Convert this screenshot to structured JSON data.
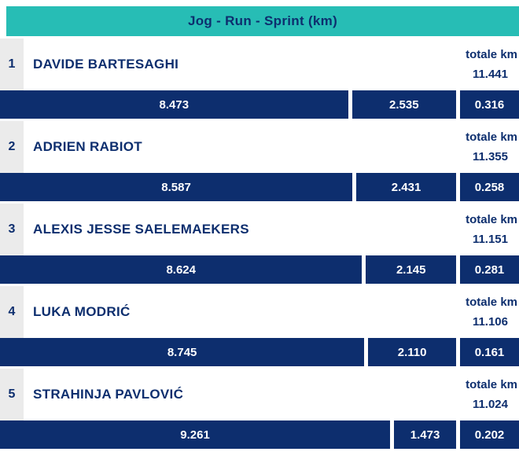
{
  "header": {
    "title": "Jog - Run - Sprint (km)"
  },
  "labels": {
    "totale": "totale km"
  },
  "colors": {
    "teal": "#27bdb5",
    "navy": "#0d2e6e",
    "rank-bg": "#ebebeb",
    "bar-text": "#ffffff"
  },
  "players": [
    {
      "rank": "1",
      "name": "DAVIDE BARTESAGHI",
      "total": "11.441",
      "jog": "8.473",
      "run": "2.535",
      "sprint": "0.316"
    },
    {
      "rank": "2",
      "name": "ADRIEN RABIOT",
      "total": "11.355",
      "jog": "8.587",
      "run": "2.431",
      "sprint": "0.258"
    },
    {
      "rank": "3",
      "name": "ALEXIS JESSE SAELEMAEKERS",
      "total": "11.151",
      "jog": "8.624",
      "run": "2.145",
      "sprint": "0.281"
    },
    {
      "rank": "4",
      "name": "LUKA MODRIĆ",
      "total": "11.106",
      "jog": "8.745",
      "run": "2.110",
      "sprint": "0.161"
    },
    {
      "rank": "5",
      "name": "STRAHINJA PAVLOVIĆ",
      "total": "11.024",
      "jog": "9.261",
      "run": "1.473",
      "sprint": "0.202"
    }
  ],
  "chart_data": {
    "type": "bar",
    "orientation": "horizontal",
    "stacked": true,
    "title": "Jog - Run - Sprint (km)",
    "categories": [
      "DAVIDE BARTESAGHI",
      "ADRIEN RABIOT",
      "ALEXIS JESSE SAELEMAEKERS",
      "LUKA MODRIĆ",
      "STRAHINJA PAVLOVIĆ"
    ],
    "series": [
      {
        "name": "Jog",
        "values": [
          8.473,
          8.587,
          8.624,
          8.745,
          9.261
        ]
      },
      {
        "name": "Run",
        "values": [
          2.535,
          2.431,
          2.145,
          2.11,
          1.473
        ]
      },
      {
        "name": "Sprint",
        "values": [
          0.316,
          0.258,
          0.281,
          0.161,
          0.202
        ]
      }
    ],
    "totals_label": "totale km",
    "totals": [
      11.441,
      11.355,
      11.151,
      11.106,
      11.024
    ],
    "bar_color": "#0d2e6e",
    "value_labels_on_bars": true,
    "legend_position": "none",
    "grid": false
  }
}
